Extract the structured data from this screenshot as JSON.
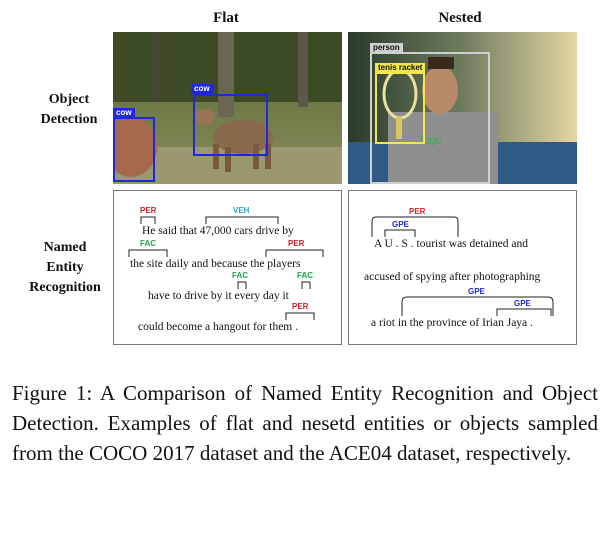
{
  "headers": {
    "flat": "Flat",
    "nested": "Nested"
  },
  "rows": {
    "object_detection": [
      "Object",
      "Detection"
    ],
    "ner": [
      "Named",
      "Entity",
      "Recognition"
    ]
  },
  "flat_image": {
    "labels": [
      "cow",
      "cow"
    ],
    "box_color": "#1f2ad6"
  },
  "nested_image": {
    "labels": [
      "person",
      "tenis racket"
    ],
    "person_color": "#cfcfcf",
    "racket_color": "#f3e84a"
  },
  "flat_ner": {
    "lines": [
      "He said that 47,000 cars drive by",
      "the site daily and because the players",
      "have to drive by it every day it",
      "could become a hangout for them ."
    ],
    "labels": [
      "PER",
      "VEH",
      "FAC",
      "PER",
      "FAC",
      "FAC",
      "PER"
    ]
  },
  "nested_ner": {
    "lines": [
      "A U . S . tourist was detained and",
      "accused of spying after photographing",
      "a riot in the province of Irian Jaya ."
    ],
    "labels": [
      "PER",
      "GPE",
      "GPE",
      "GPE"
    ]
  },
  "colors": {
    "PER": "#d6202a",
    "VEH": "#29a3d9",
    "FAC": "#1ea34a",
    "GPE": "#1f2ad6"
  },
  "caption": "Figure 1: A Comparison of Named Entity Recognition and Object Detection. Examples of flat and nesetd entities or objects sampled from the COCO 2017 dataset and the ACE04 dataset, respectively."
}
